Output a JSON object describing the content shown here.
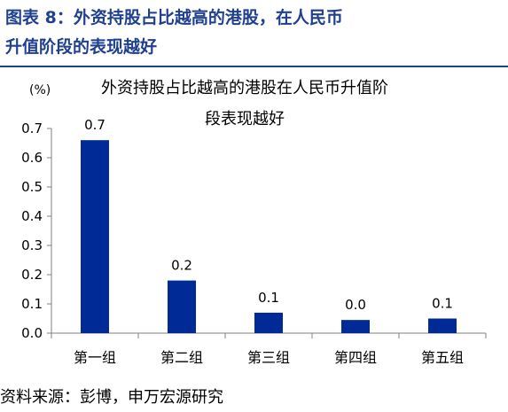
{
  "figure": {
    "title_line1": "图表 8：外资持股占比越高的港股，在人民币",
    "title_line2": "升值阶段的表现越好"
  },
  "source": "资料来源：彭博，申万宏源研究",
  "colors": {
    "bar": "#002b96",
    "title": "#1f3f8f",
    "axis": "#808080"
  },
  "chart_data": {
    "type": "bar",
    "title_line1": "外资持股占比越高的港股在人民币升值阶",
    "title_line2": "段表现越好",
    "unit_label": "(%)",
    "categories": [
      "第一组",
      "第二组",
      "第三组",
      "第四组",
      "第五组"
    ],
    "values": [
      0.66,
      0.18,
      0.07,
      0.045,
      0.05
    ],
    "data_labels": [
      "0.7",
      "0.2",
      "0.1",
      "0.0",
      "0.1"
    ],
    "ylim": [
      0,
      0.7
    ],
    "yticks": [
      "0.0",
      "0.1",
      "0.2",
      "0.3",
      "0.4",
      "0.5",
      "0.6",
      "0.7"
    ],
    "grid": false
  }
}
